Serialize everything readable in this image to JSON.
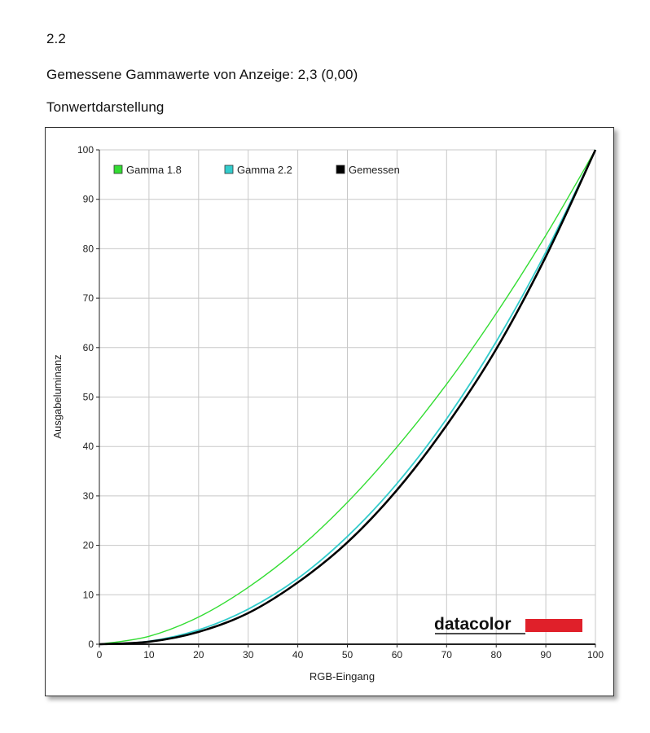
{
  "header": {
    "version": "2.2",
    "gamma_summary": "Gemessene Gammawerte von Anzeige: 2,3 (0,00)",
    "section_title": "Tonwertdarstellung"
  },
  "logo": {
    "text": "datacolor",
    "color": "#111111",
    "bar_color": "#e0202a"
  },
  "chart_data": {
    "type": "line",
    "xlabel": "RGB-Eingang",
    "ylabel": "Ausgabeluminanz",
    "xlim": [
      0,
      100
    ],
    "ylim": [
      0,
      100
    ],
    "xticks": [
      0,
      10,
      20,
      30,
      40,
      50,
      60,
      70,
      80,
      90,
      100
    ],
    "yticks": [
      0,
      10,
      20,
      30,
      40,
      50,
      60,
      70,
      80,
      90,
      100
    ],
    "grid": true,
    "legend_position": "top-left",
    "x": [
      0,
      10,
      20,
      30,
      40,
      50,
      60,
      70,
      80,
      90,
      100
    ],
    "series": [
      {
        "name": "Gamma 1.8",
        "color": "#33dd33",
        "values": [
          0,
          1.6,
          5.5,
          11.5,
          19.2,
          28.7,
          39.9,
          52.6,
          66.9,
          82.7,
          100
        ]
      },
      {
        "name": "Gamma 2.2",
        "color": "#33cccc",
        "values": [
          0,
          0.6,
          2.9,
          7.1,
          13.3,
          21.8,
          32.5,
          45.6,
          61.2,
          79.3,
          100
        ]
      },
      {
        "name": "Gemessen",
        "color": "#000000",
        "values": [
          0,
          0.5,
          2.5,
          6.3,
          12.5,
          20.6,
          31.2,
          44.3,
          59.7,
          78.4,
          100
        ]
      }
    ]
  }
}
